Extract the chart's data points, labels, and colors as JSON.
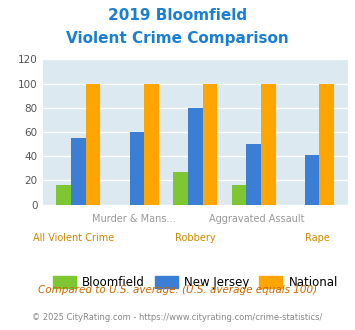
{
  "title_line1": "2019 Bloomfield",
  "title_line2": "Violent Crime Comparison",
  "title_color": "#1a7fd4",
  "bloomfield": [
    16,
    0,
    27,
    16,
    0
  ],
  "new_jersey": [
    55,
    60,
    80,
    50,
    41
  ],
  "national": [
    100,
    100,
    100,
    100,
    100
  ],
  "bar_colors": {
    "bloomfield": "#7dc832",
    "new_jersey": "#3a7fd5",
    "national": "#ffa500"
  },
  "ylim": [
    0,
    120
  ],
  "yticks": [
    0,
    20,
    40,
    60,
    80,
    100,
    120
  ],
  "background_color": "#dce9f0",
  "grid_color": "#ffffff",
  "top_labels": [
    "",
    "Murder & Mans...",
    "",
    "Aggravated Assault",
    ""
  ],
  "bottom_labels": [
    "All Violent Crime",
    "",
    "Robbery",
    "",
    "Rape"
  ],
  "top_label_color": "#999999",
  "bottom_label_color": "#cc8800",
  "legend_labels": [
    "Bloomfield",
    "New Jersey",
    "National"
  ],
  "footnote1": "Compared to U.S. average. (U.S. average equals 100)",
  "footnote1_color": "#cc6600",
  "footnote2": "© 2025 CityRating.com - https://www.cityrating.com/crime-statistics/",
  "footnote2_color": "#888888"
}
